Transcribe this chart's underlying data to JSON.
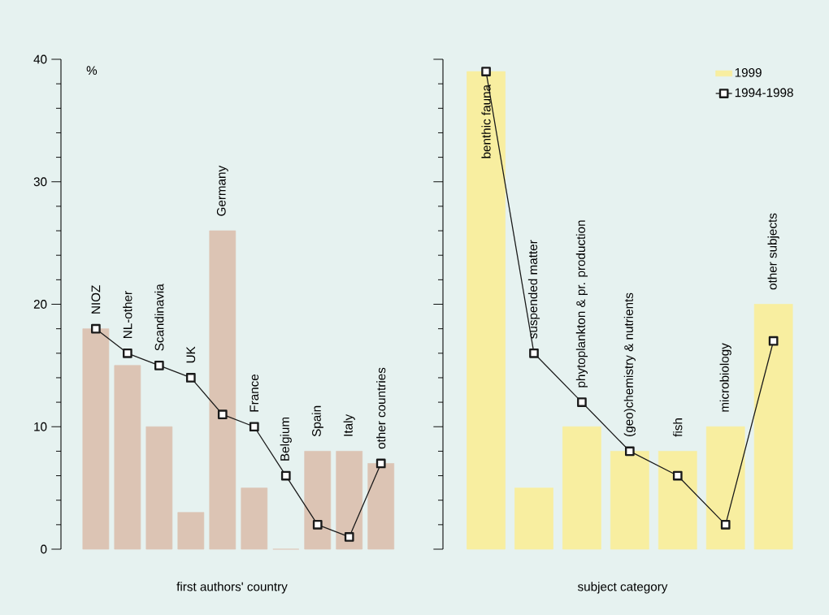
{
  "chart_data": [
    {
      "type": "bar",
      "ylabel": "%",
      "xlabel": "first authors' country",
      "ylim": [
        0,
        40
      ],
      "yticks": [
        0,
        10,
        20,
        30,
        40
      ],
      "categories": [
        "NIOZ",
        "NL-other",
        "Scandinavia",
        "UK",
        "Germany",
        "France",
        "Belgium",
        "Spain",
        "Italy",
        "other countries"
      ],
      "series": [
        {
          "color": "#dcc4b4",
          "values": [
            18,
            15,
            10,
            3,
            26,
            5,
            0,
            8,
            8,
            7
          ]
        },
        {
          "type": "line",
          "color": "#1a1a1a",
          "marker": "square",
          "line_style": "solid",
          "values": [
            18,
            16,
            15,
            14,
            11,
            10,
            6,
            2,
            1,
            7
          ]
        }
      ]
    },
    {
      "type": "bar",
      "xlabel": "subject category",
      "ylim": [
        0,
        40
      ],
      "yticks": [
        0,
        10,
        20,
        30,
        40
      ],
      "tick_labels": "x",
      "legend": "top right",
      "categories": [
        "benthic fauna",
        "suspended matter",
        "phytoplankton & pr. production",
        "(geo)chemistry & nutrients",
        "fish",
        "microbiology",
        "other subjects"
      ],
      "series": [
        {
          "name": "1999",
          "color": "#f8eea0",
          "values": [
            39,
            5,
            10,
            8,
            8,
            10,
            20
          ]
        },
        {
          "type": "line",
          "name": "1994-1998",
          "color": "#1a1a1a",
          "marker": "square",
          "line_style": "solid",
          "values": [
            39,
            16,
            12,
            8,
            6,
            2,
            17
          ]
        }
      ]
    }
  ]
}
